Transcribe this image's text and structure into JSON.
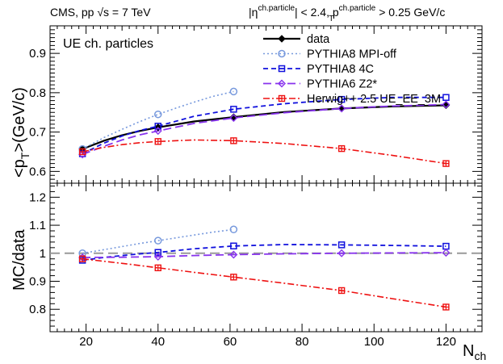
{
  "header": {
    "left": "CMS, pp √s = 7 TeV",
    "right_eta": "|η",
    "right_eta_sup": "ch.particle",
    "right_mid": "| < 2.4, p",
    "right_pt_sup": "ch.particle",
    "right_pt_sub": "T",
    "right_tail": " > 0.25 GeV/c"
  },
  "top_panel": {
    "label": "UE ch. particles",
    "ylabel_main": "<p",
    "ylabel_sub": "T",
    "ylabel_tail": ">(GeV/c)"
  },
  "bottom_panel": {
    "ylabel": "MC/data"
  },
  "xaxis": {
    "label_main": "N",
    "label_sub": "ch"
  },
  "legend": [
    {
      "key": "data",
      "label": "data"
    },
    {
      "key": "mpioff",
      "label": "PYTHIA8 MPI-off"
    },
    {
      "key": "p8_4c",
      "label": "PYTHIA8 4C"
    },
    {
      "key": "p6_z2",
      "label": "PYTHIA6 Z2*"
    },
    {
      "key": "herwig",
      "label": "Herwig++ 2.5  UE_EE_3M"
    }
  ],
  "colors": {
    "data": "#000000",
    "mpioff": "#7799dd",
    "p8_4c": "#1111dd",
    "p6_z2": "#8833ee",
    "herwig": "#ee1111",
    "reference_line": "#999999"
  },
  "chart_data": [
    {
      "type": "line",
      "panel": "top",
      "xlim": [
        10,
        130
      ],
      "ylim": [
        0.57,
        0.97
      ],
      "xticks": [
        20,
        40,
        60,
        80,
        100,
        120
      ],
      "yticks": [
        0.6,
        0.7,
        0.8,
        0.9
      ],
      "xlabel": "N_ch",
      "ylabel": "<p_T>(GeV/c)",
      "series": [
        {
          "name": "data",
          "x": [
            19,
            40,
            61,
            91,
            120
          ],
          "y": [
            0.657,
            0.712,
            0.738,
            0.76,
            0.768
          ],
          "curve_x": [
            19,
            25,
            30,
            35,
            40,
            50,
            61,
            75,
            91,
            105,
            120
          ],
          "curve_y": [
            0.657,
            0.678,
            0.692,
            0.703,
            0.712,
            0.727,
            0.738,
            0.751,
            0.76,
            0.765,
            0.768
          ]
        },
        {
          "name": "PYTHIA8 MPI-off",
          "x": [
            19,
            40,
            61
          ],
          "y": [
            0.657,
            0.745,
            0.803
          ],
          "curve_x": [
            19,
            25,
            30,
            35,
            40,
            45,
            50,
            55,
            61
          ],
          "curve_y": [
            0.657,
            0.686,
            0.707,
            0.727,
            0.745,
            0.761,
            0.776,
            0.79,
            0.803
          ]
        },
        {
          "name": "PYTHIA8 4C",
          "x": [
            19,
            40,
            61,
            91,
            120
          ],
          "y": [
            0.645,
            0.715,
            0.758,
            0.783,
            0.788
          ],
          "curve_x": [
            19,
            25,
            30,
            35,
            40,
            50,
            61,
            75,
            91,
            105,
            120
          ],
          "curve_y": [
            0.645,
            0.672,
            0.69,
            0.704,
            0.715,
            0.74,
            0.758,
            0.772,
            0.783,
            0.788,
            0.788
          ]
        },
        {
          "name": "PYTHIA6 Z2*",
          "x": [
            19,
            40,
            61,
            91,
            120
          ],
          "y": [
            0.643,
            0.703,
            0.736,
            0.76,
            0.77
          ],
          "curve_x": [
            19,
            25,
            30,
            35,
            40,
            50,
            61,
            75,
            91,
            105,
            120
          ],
          "curve_y": [
            0.643,
            0.664,
            0.68,
            0.693,
            0.703,
            0.722,
            0.736,
            0.749,
            0.76,
            0.766,
            0.77
          ]
        },
        {
          "name": "Herwig++ 2.5  UE_EE_3M",
          "x": [
            19,
            40,
            61,
            91,
            120
          ],
          "y": [
            0.65,
            0.676,
            0.678,
            0.658,
            0.62
          ],
          "curve_x": [
            19,
            25,
            30,
            35,
            40,
            50,
            61,
            75,
            91,
            105,
            120
          ],
          "curve_y": [
            0.65,
            0.661,
            0.668,
            0.673,
            0.676,
            0.68,
            0.678,
            0.671,
            0.658,
            0.641,
            0.62
          ]
        }
      ]
    },
    {
      "type": "line",
      "panel": "bottom",
      "xlim": [
        10,
        130
      ],
      "ylim": [
        0.72,
        1.25
      ],
      "xticks": [
        20,
        40,
        60,
        80,
        100,
        120
      ],
      "yticks": [
        0.8,
        0.9,
        1,
        1.1,
        1.2
      ],
      "reference_y": 1,
      "xlabel": "N_ch",
      "ylabel": "MC/data",
      "series": [
        {
          "name": "PYTHIA8 MPI-off",
          "x": [
            19,
            40,
            61
          ],
          "y": [
            1.0,
            1.045,
            1.085
          ],
          "curve_x": [
            19,
            25,
            30,
            35,
            40,
            45,
            50,
            55,
            61
          ],
          "curve_y": [
            1.0,
            1.013,
            1.024,
            1.035,
            1.045,
            1.055,
            1.065,
            1.075,
            1.085
          ]
        },
        {
          "name": "PYTHIA8 4C",
          "x": [
            19,
            40,
            61,
            91,
            120
          ],
          "y": [
            0.975,
            1.003,
            1.026,
            1.03,
            1.025
          ],
          "curve_x": [
            19,
            25,
            30,
            35,
            40,
            50,
            61,
            75,
            91,
            105,
            120
          ],
          "curve_y": [
            0.975,
            0.985,
            0.992,
            0.998,
            1.003,
            1.016,
            1.026,
            1.031,
            1.03,
            1.028,
            1.025
          ]
        },
        {
          "name": "PYTHIA6 Z2*",
          "x": [
            19,
            40,
            61,
            91,
            120
          ],
          "y": [
            0.985,
            0.988,
            0.995,
            1.0,
            1.002
          ],
          "curve_x": [
            19,
            30,
            40,
            50,
            61,
            75,
            91,
            105,
            120
          ],
          "curve_y": [
            0.985,
            0.986,
            0.988,
            0.992,
            0.995,
            0.998,
            1.0,
            1.001,
            1.002
          ]
        },
        {
          "name": "Herwig++ 2.5  UE_EE_3M",
          "x": [
            19,
            40,
            61,
            91,
            120
          ],
          "y": [
            0.98,
            0.948,
            0.915,
            0.867,
            0.808
          ],
          "curve_x": [
            19,
            30,
            40,
            50,
            61,
            75,
            91,
            105,
            120
          ],
          "curve_y": [
            0.98,
            0.964,
            0.948,
            0.932,
            0.915,
            0.893,
            0.867,
            0.838,
            0.808
          ]
        }
      ]
    }
  ]
}
